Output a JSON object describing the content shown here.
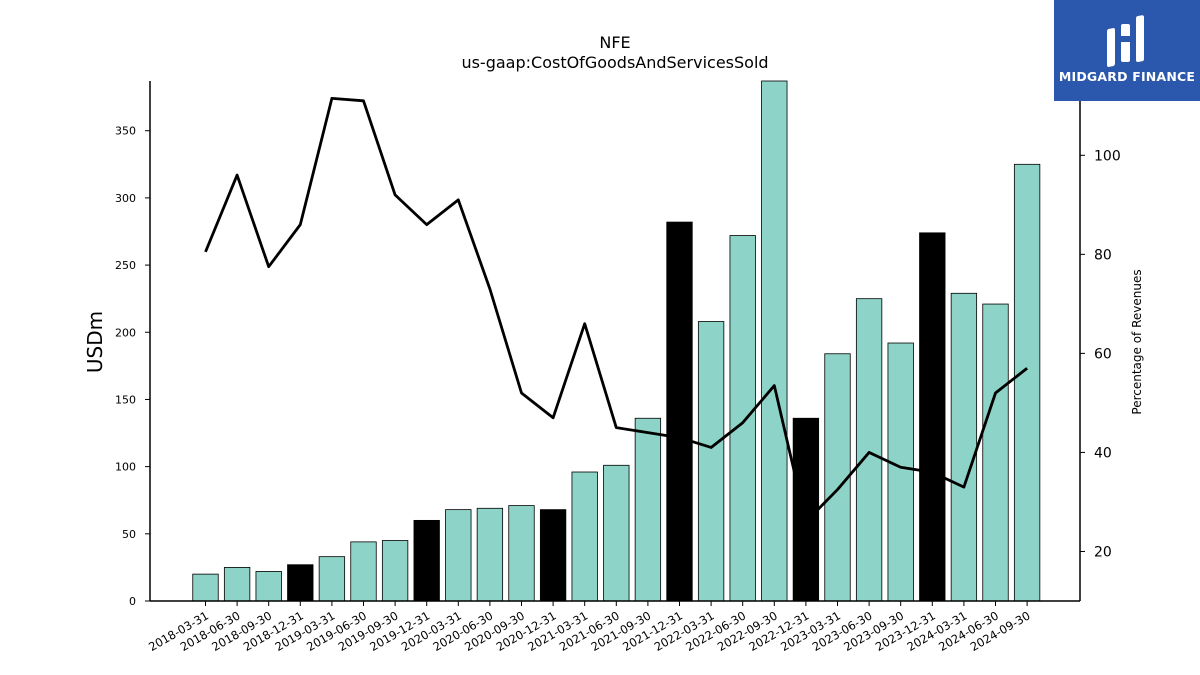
{
  "brand": {
    "name": "MIDGARD FINANCE",
    "bg_color": "#2b58ad"
  },
  "chart_data": {
    "type": "bar",
    "title": "NFE",
    "subtitle": "us-gaap:CostOfGoodsAndServicesSold",
    "ylabel": "USDm",
    "y2label": "Percentage of Revenues",
    "ylim": [
      0,
      387
    ],
    "y2lim": [
      10,
      115
    ],
    "yticks": [
      0,
      50,
      100,
      150,
      200,
      250,
      300,
      350
    ],
    "y2ticks": [
      20,
      40,
      60,
      80,
      100
    ],
    "categories": [
      "2018-03-31",
      "2018-06-30",
      "2018-09-30",
      "2018-12-31",
      "2019-03-31",
      "2019-06-30",
      "2019-09-30",
      "2019-12-31",
      "2020-03-31",
      "2020-06-30",
      "2020-09-30",
      "2020-12-31",
      "2021-03-31",
      "2021-06-30",
      "2021-09-30",
      "2021-12-31",
      "2022-03-31",
      "2022-06-30",
      "2022-09-30",
      "2022-12-31",
      "2023-03-31",
      "2023-06-30",
      "2023-09-30",
      "2023-12-31",
      "2024-03-31",
      "2024-06-30",
      "2024-09-30"
    ],
    "values": [
      20,
      25,
      22,
      27,
      33,
      44,
      45,
      60,
      68,
      69,
      71,
      68,
      96,
      101,
      136,
      282,
      208,
      272,
      388,
      136,
      184,
      225,
      192,
      274,
      229,
      221,
      325
    ],
    "highlight": [
      false,
      false,
      false,
      true,
      false,
      false,
      false,
      true,
      false,
      false,
      false,
      true,
      false,
      false,
      false,
      true,
      false,
      false,
      false,
      true,
      false,
      false,
      false,
      true,
      false,
      false,
      false
    ],
    "line_values": [
      80.5,
      96,
      77.5,
      86,
      111.5,
      111,
      92,
      86,
      91,
      73,
      52,
      47,
      66,
      45,
      44,
      43,
      41,
      46,
      53.5,
      26,
      32.5,
      40,
      37,
      36,
      33,
      52,
      57
    ],
    "colors": {
      "bar": "#8ed3c7",
      "bar_highlight": "#000000",
      "line": "#000000"
    },
    "grid": false,
    "legend": "none"
  }
}
